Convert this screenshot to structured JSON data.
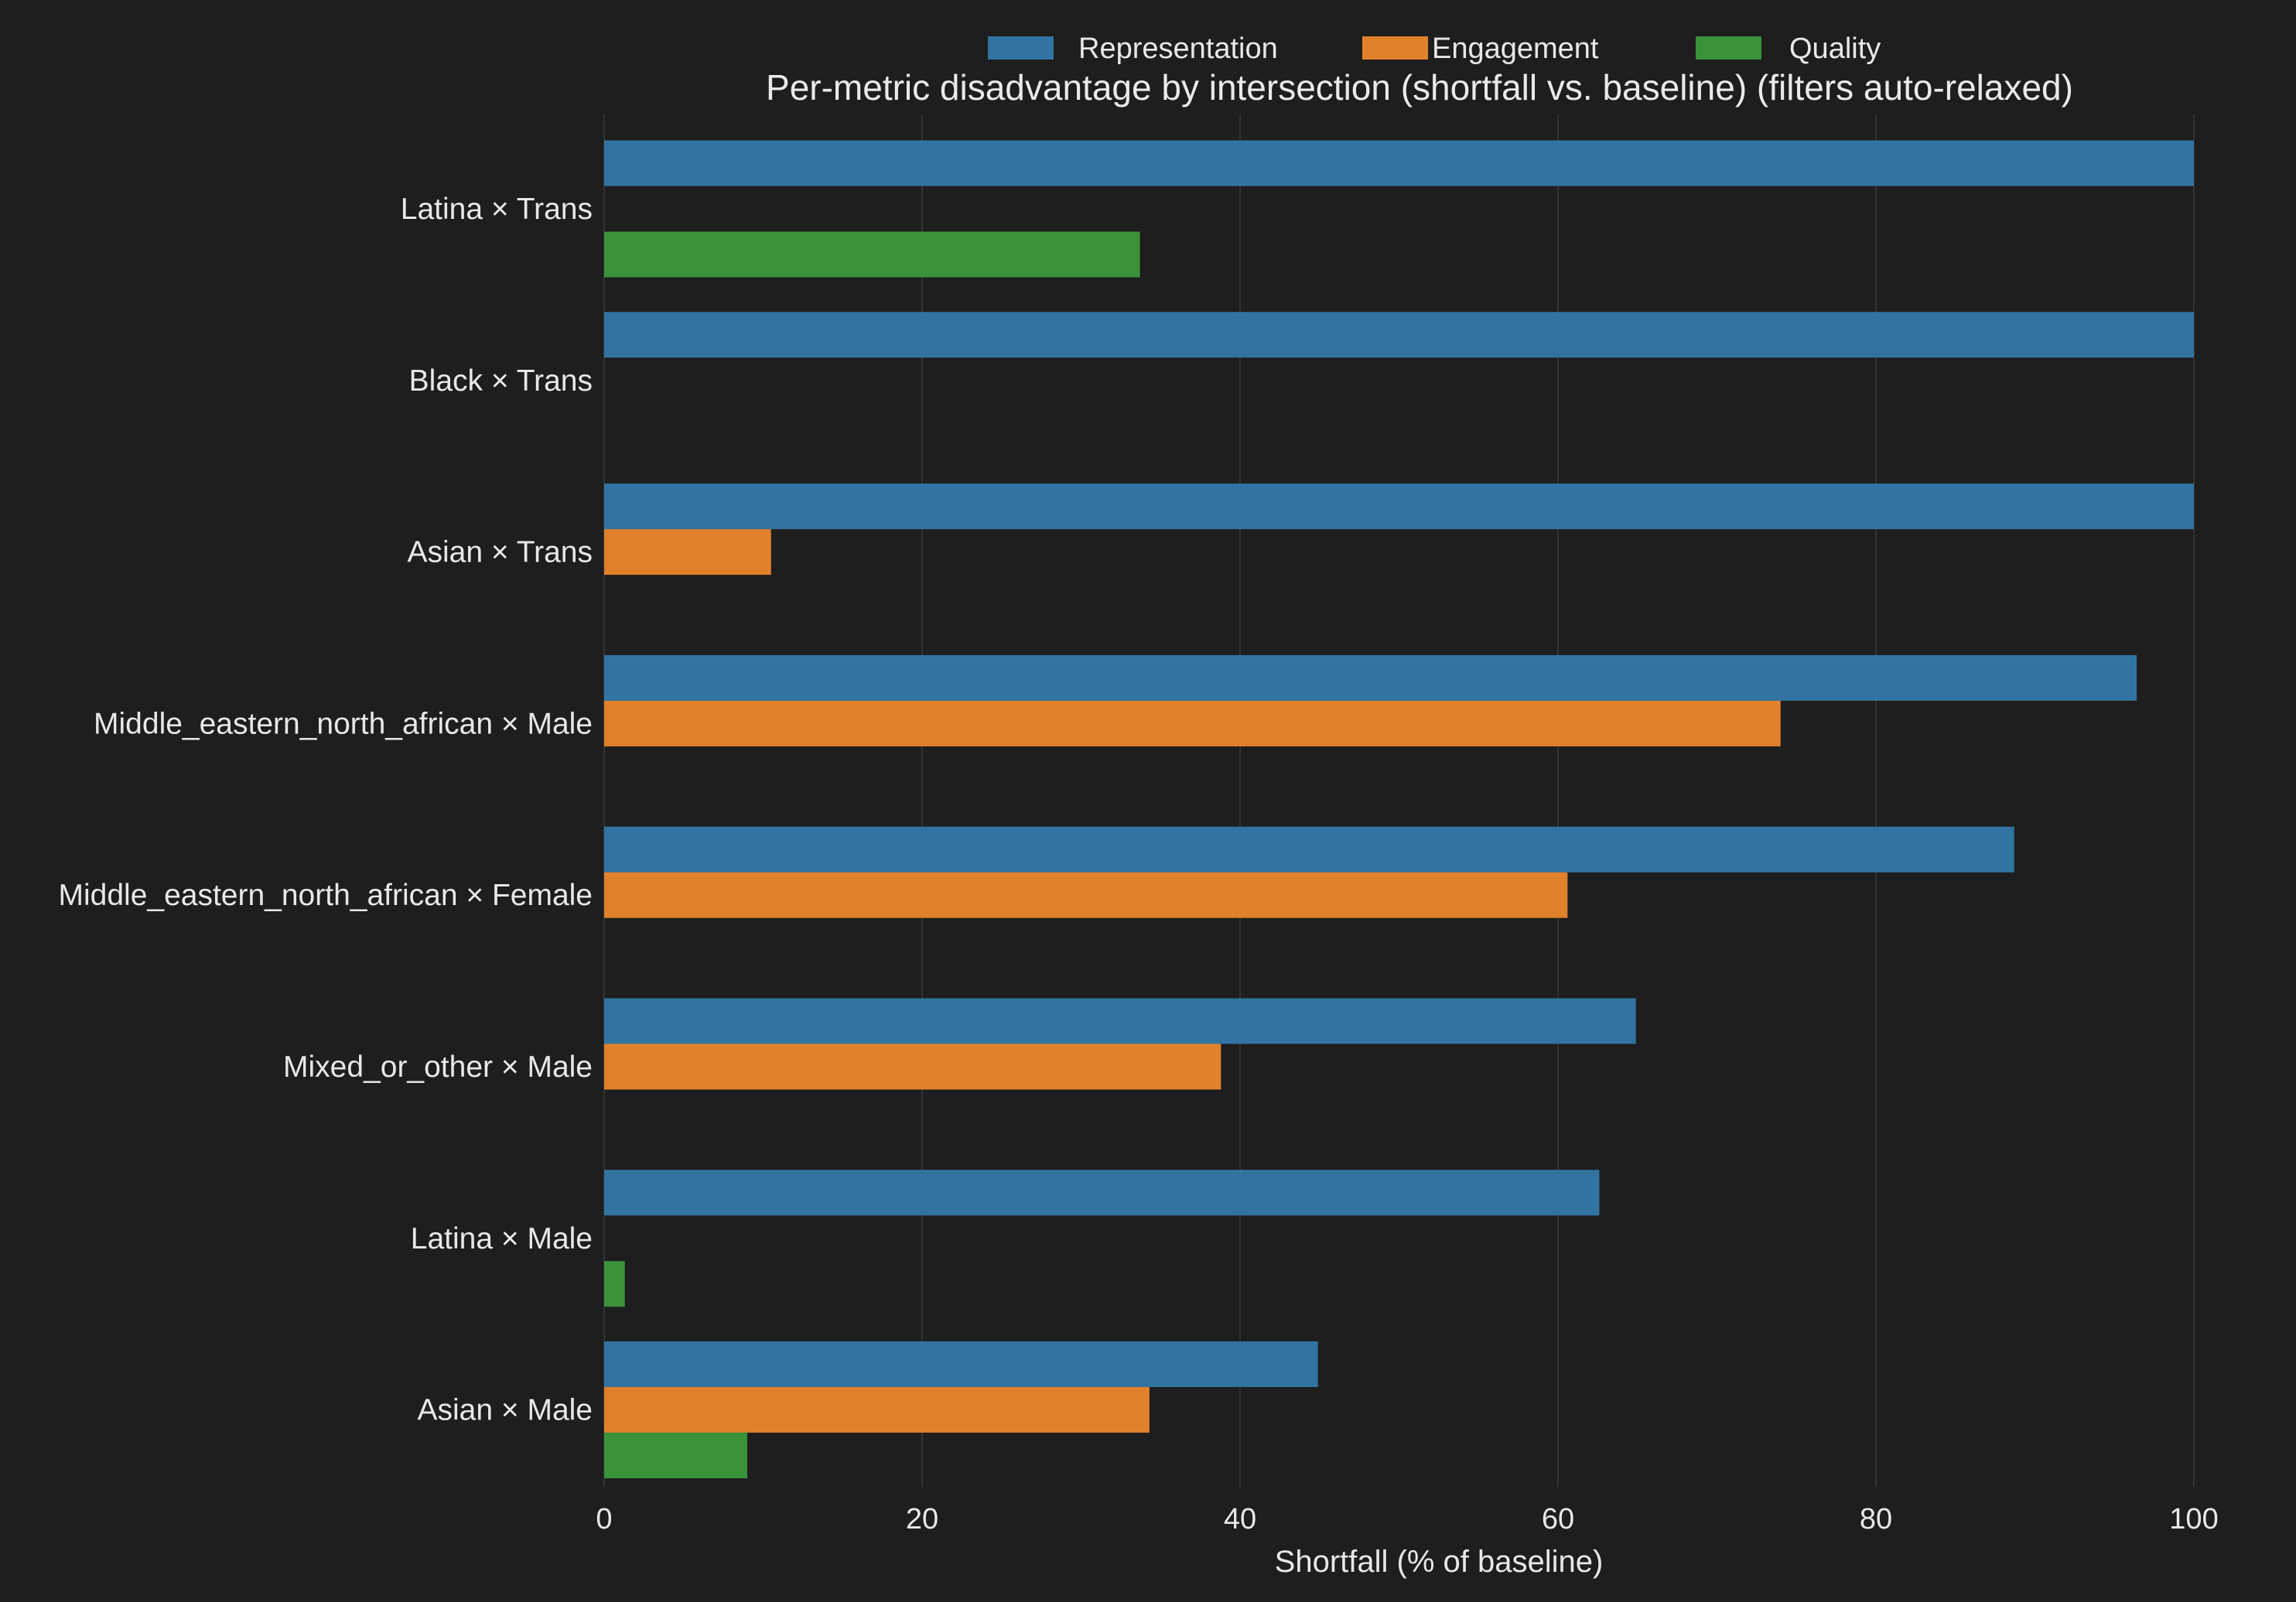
{
  "chart_data": {
    "type": "bar",
    "orientation": "horizontal",
    "title": "Per-metric disadvantage by intersection (shortfall vs. baseline)  (filters auto-relaxed)",
    "xlabel": "Shortfall (% of baseline)",
    "ylabel": "",
    "xlim": [
      0,
      100
    ],
    "xticks": [
      0,
      20,
      40,
      60,
      80,
      100
    ],
    "grid": "vertical",
    "legend_position": "top-center",
    "categories": [
      "Latina × Trans",
      "Black × Trans",
      "Asian × Trans",
      "Middle_eastern_north_african × Male",
      "Middle_eastern_north_african × Female",
      "Mixed_or_other × Male",
      "Latina × Male",
      "Asian × Male"
    ],
    "series": [
      {
        "name": "Representation",
        "color": "#3274a1",
        "values": [
          100,
          100,
          100,
          96.4,
          88.7,
          64.9,
          62.6,
          44.9
        ]
      },
      {
        "name": "Engagement",
        "color": "#e1812c",
        "values": [
          0,
          0,
          10.5,
          74.0,
          60.6,
          38.8,
          0,
          34.3
        ]
      },
      {
        "name": "Quality",
        "color": "#3a923a",
        "values": [
          33.7,
          0,
          0,
          0,
          0,
          0,
          1.3,
          9.0
        ]
      }
    ]
  }
}
